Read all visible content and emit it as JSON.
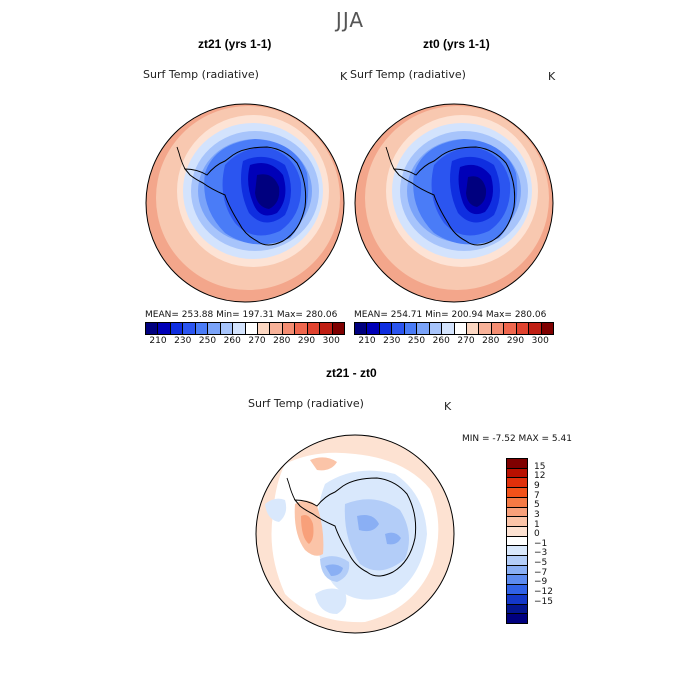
{
  "main_title": "JJA",
  "panels": [
    {
      "title": "zt21 (yrs 1-1)",
      "var_label": "Surf Temp (radiative)",
      "units": "K",
      "stats": "MEAN= 253.88   Min= 197.31   Max= 280.06"
    },
    {
      "title": "zt0 (yrs 1-1)",
      "var_label": "Surf Temp (radiative)",
      "units": "K",
      "stats": "MEAN= 254.71   Min= 200.94   Max= 280.06"
    }
  ],
  "top_colorbar": {
    "colors": [
      "#00007f",
      "#0000b8",
      "#0f2ee0",
      "#2b55f0",
      "#4a7cf7",
      "#7aa3f9",
      "#a7c4fb",
      "#d3e3fd",
      "#ffffff",
      "#fcd7c2",
      "#f8b299",
      "#f48d72",
      "#ef674e",
      "#e0432f",
      "#c01f14",
      "#7f0000"
    ],
    "labels": [
      "210",
      "230",
      "250",
      "260",
      "270",
      "280",
      "290",
      "300"
    ]
  },
  "diff_panel": {
    "title": "zt21 - zt0",
    "var_label": "Surf Temp (radiative)",
    "units": "K",
    "stats": "MIN =    -7.52  MAX =     5.41"
  },
  "diff_colorbar": {
    "colors": [
      "#7f0000",
      "#b81000",
      "#e0300b",
      "#f2521a",
      "#f57a45",
      "#f8a07a",
      "#fbc4a8",
      "#fde2d2",
      "#ffffff",
      "#d9e8fc",
      "#b3cdf8",
      "#8aaff4",
      "#5d8bef",
      "#3162e6",
      "#1438c8",
      "#04168f",
      "#00007f"
    ],
    "labels": [
      "15",
      "12",
      "9",
      "7",
      "5",
      "3",
      "1",
      "0",
      "−1",
      "−3",
      "−5",
      "−7",
      "−9",
      "−12",
      "−15"
    ]
  },
  "field_colors": {
    "warm_outer": "#f3a68b",
    "warm_mid": "#f8c8b0",
    "warm_light": "#fde3d5",
    "cool_1": "#d3e3fd",
    "cool_2": "#a7c4fb",
    "cool_3": "#7aa3f9",
    "cool_4": "#4a7cf7",
    "cool_5": "#2b55f0",
    "cool_6": "#0f2ee0",
    "cool_7": "#0000b8",
    "cool_8": "#00007f"
  }
}
